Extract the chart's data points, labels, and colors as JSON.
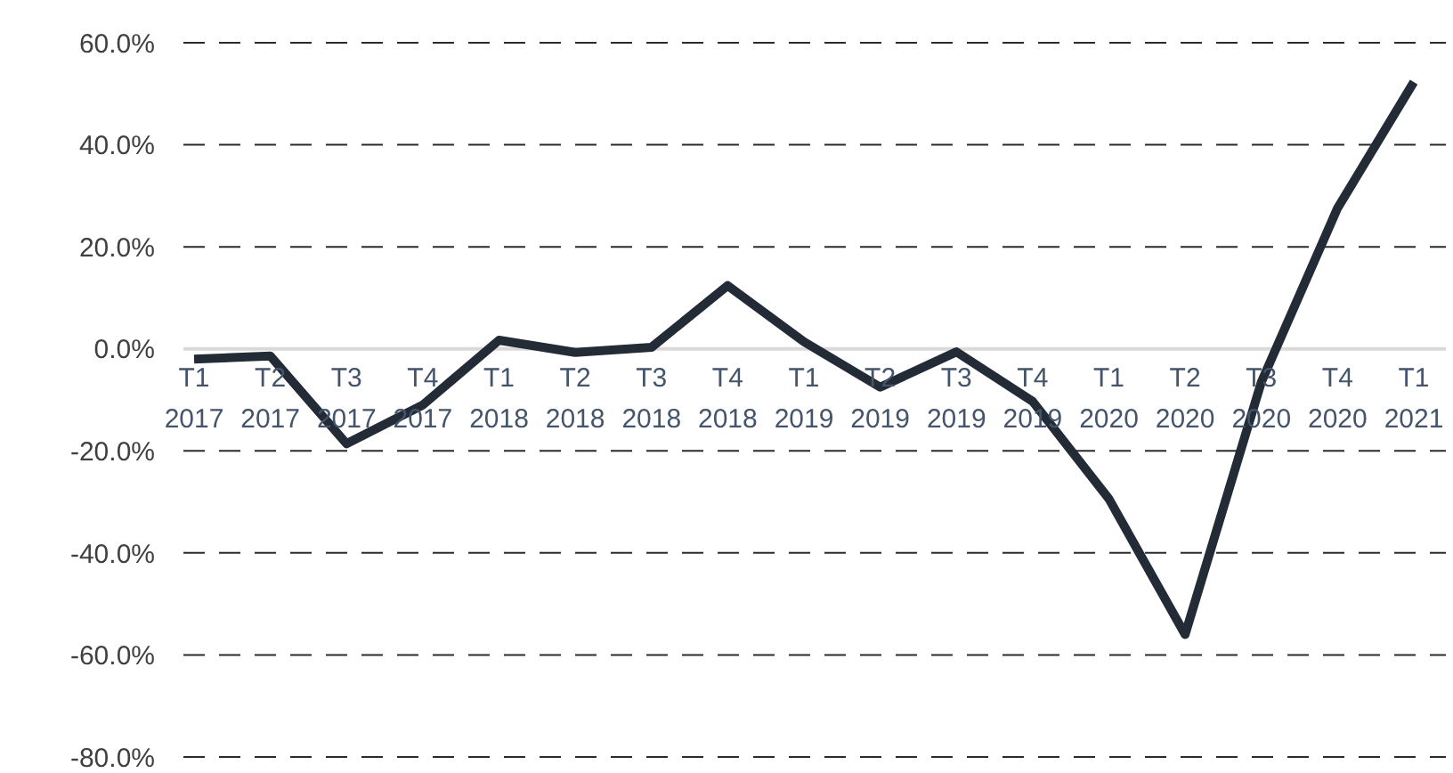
{
  "chart_data": {
    "type": "line",
    "categories": [
      "T1 2017",
      "T2 2017",
      "T3 2017",
      "T4 2017",
      "T1 2018",
      "T2 2018",
      "T3 2018",
      "T4 2018",
      "T1 2019",
      "T2 2019",
      "T3 2019",
      "T4 2019",
      "T1 2020",
      "T2 2020",
      "T3 2020",
      "T4 2020",
      "T1 2021"
    ],
    "series": [
      {
        "color": "#232b36",
        "values": [
          -2.0,
          -1.4,
          -18.6,
          -11.0,
          1.7,
          -0.7,
          0.3,
          12.4,
          1.4,
          -7.5,
          -0.6,
          -10.3,
          -29.4,
          -56.0,
          -6.5,
          27.6,
          52.3
        ]
      }
    ],
    "ylim": [
      -80,
      60
    ],
    "yticks": [
      {
        "value": -80,
        "label": "-80.0%"
      },
      {
        "value": -60,
        "label": "-60.0%"
      },
      {
        "value": -40,
        "label": "-40.0%"
      },
      {
        "value": -20,
        "label": "-20.0%"
      },
      {
        "value": 0,
        "label": "0.0%"
      },
      {
        "value": 20,
        "label": "20.0%"
      },
      {
        "value": 40,
        "label": "40.0%"
      },
      {
        "value": 60,
        "label": "60.0%"
      }
    ],
    "grid": "y",
    "marker": "none",
    "line_style": "solid"
  }
}
